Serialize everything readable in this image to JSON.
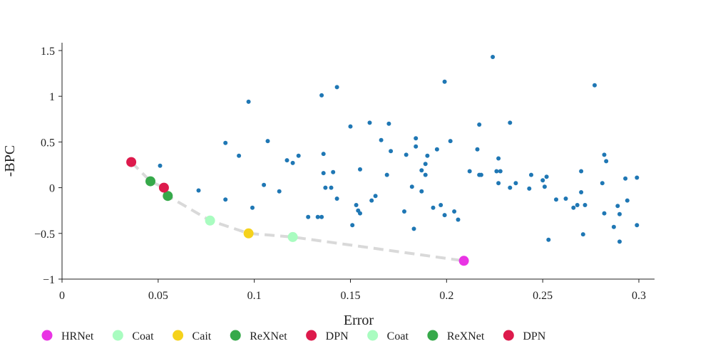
{
  "chart_data": {
    "type": "scatter",
    "xlabel": "Error",
    "ylabel": "-BPC",
    "xlim": [
      0,
      0.3
    ],
    "ylim": [
      -1,
      1.5
    ],
    "x_ticks": [
      {
        "v": 0,
        "label": "0"
      },
      {
        "v": 0.05,
        "label": "0.05"
      },
      {
        "v": 0.1,
        "label": "0.1"
      },
      {
        "v": 0.15,
        "label": "0.15"
      },
      {
        "v": 0.2,
        "label": "0.2"
      },
      {
        "v": 0.25,
        "label": "0.25"
      },
      {
        "v": 0.3,
        "label": "0.3"
      }
    ],
    "y_ticks": [
      {
        "v": 1.5,
        "label": "1.5"
      },
      {
        "v": 1,
        "label": "1"
      },
      {
        "v": 0.5,
        "label": "0.5"
      },
      {
        "v": 0,
        "label": "0"
      },
      {
        "v": -0.5,
        "label": "−0.5"
      },
      {
        "v": -1,
        "label": "−1"
      }
    ],
    "background_points": {
      "color": "#1f77b4",
      "points": [
        [
          0.051,
          0.24
        ],
        [
          0.071,
          -0.03
        ],
        [
          0.085,
          0.49
        ],
        [
          0.085,
          -0.13
        ],
        [
          0.092,
          0.35
        ],
        [
          0.097,
          0.94
        ],
        [
          0.099,
          -0.22
        ],
        [
          0.105,
          0.03
        ],
        [
          0.107,
          0.51
        ],
        [
          0.113,
          -0.04
        ],
        [
          0.117,
          0.3
        ],
        [
          0.12,
          0.27
        ],
        [
          0.123,
          0.35
        ],
        [
          0.128,
          -0.32
        ],
        [
          0.133,
          -0.32
        ],
        [
          0.135,
          -0.32
        ],
        [
          0.135,
          1.01
        ],
        [
          0.136,
          0.37
        ],
        [
          0.136,
          0.16
        ],
        [
          0.137,
          0.0
        ],
        [
          0.14,
          0.0
        ],
        [
          0.141,
          0.17
        ],
        [
          0.143,
          1.1
        ],
        [
          0.143,
          -0.12
        ],
        [
          0.15,
          0.67
        ],
        [
          0.151,
          -0.41
        ],
        [
          0.153,
          -0.19
        ],
        [
          0.154,
          -0.25
        ],
        [
          0.155,
          -0.28
        ],
        [
          0.155,
          0.2
        ],
        [
          0.16,
          0.71
        ],
        [
          0.161,
          -0.14
        ],
        [
          0.163,
          -0.09
        ],
        [
          0.166,
          0.52
        ],
        [
          0.169,
          0.14
        ],
        [
          0.17,
          0.7
        ],
        [
          0.171,
          0.4
        ],
        [
          0.178,
          -0.26
        ],
        [
          0.179,
          0.36
        ],
        [
          0.182,
          0.01
        ],
        [
          0.183,
          -0.45
        ],
        [
          0.184,
          0.45
        ],
        [
          0.184,
          0.54
        ],
        [
          0.187,
          0.19
        ],
        [
          0.187,
          -0.04
        ],
        [
          0.189,
          0.26
        ],
        [
          0.189,
          0.14
        ],
        [
          0.19,
          0.35
        ],
        [
          0.193,
          -0.22
        ],
        [
          0.195,
          0.42
        ],
        [
          0.197,
          -0.19
        ],
        [
          0.199,
          -0.3
        ],
        [
          0.199,
          1.16
        ],
        [
          0.202,
          0.51
        ],
        [
          0.204,
          -0.26
        ],
        [
          0.206,
          -0.35
        ],
        [
          0.212,
          0.18
        ],
        [
          0.216,
          0.42
        ],
        [
          0.217,
          0.14
        ],
        [
          0.217,
          0.69
        ],
        [
          0.218,
          0.14
        ],
        [
          0.224,
          1.43
        ],
        [
          0.226,
          0.18
        ],
        [
          0.227,
          0.05
        ],
        [
          0.227,
          0.32
        ],
        [
          0.228,
          0.18
        ],
        [
          0.233,
          0.71
        ],
        [
          0.233,
          0.0
        ],
        [
          0.236,
          0.05
        ],
        [
          0.243,
          -0.01
        ],
        [
          0.244,
          0.14
        ],
        [
          0.25,
          0.08
        ],
        [
          0.251,
          0.01
        ],
        [
          0.252,
          0.12
        ],
        [
          0.253,
          -0.57
        ],
        [
          0.257,
          -0.13
        ],
        [
          0.262,
          -0.12
        ],
        [
          0.266,
          -0.22
        ],
        [
          0.268,
          -0.19
        ],
        [
          0.27,
          0.18
        ],
        [
          0.27,
          -0.05
        ],
        [
          0.271,
          -0.51
        ],
        [
          0.272,
          -0.19
        ],
        [
          0.277,
          1.12
        ],
        [
          0.281,
          0.05
        ],
        [
          0.282,
          -0.28
        ],
        [
          0.282,
          0.36
        ],
        [
          0.283,
          0.29
        ],
        [
          0.287,
          -0.43
        ],
        [
          0.289,
          -0.2
        ],
        [
          0.29,
          -0.29
        ],
        [
          0.29,
          -0.59
        ],
        [
          0.293,
          0.1
        ],
        [
          0.294,
          -0.14
        ],
        [
          0.299,
          -0.41
        ],
        [
          0.299,
          0.11
        ]
      ]
    },
    "frontier": {
      "color": "#d9d9d9",
      "points": [
        [
          0.036,
          0.28
        ],
        [
          0.046,
          0.07
        ],
        [
          0.053,
          0.0
        ],
        [
          0.055,
          -0.09
        ],
        [
          0.077,
          -0.36
        ],
        [
          0.097,
          -0.5
        ],
        [
          0.12,
          -0.54
        ],
        [
          0.209,
          -0.8
        ]
      ]
    },
    "series": [
      {
        "name": "HRNet",
        "color": "#e934e4",
        "points": [
          [
            0.209,
            -0.8
          ]
        ]
      },
      {
        "name": "Coat",
        "color": "#a9fcc0",
        "points": [
          [
            0.077,
            -0.36
          ]
        ]
      },
      {
        "name": "Cait",
        "color": "#f5d21c",
        "points": [
          [
            0.097,
            -0.5
          ]
        ]
      },
      {
        "name": "ReXNet",
        "color": "#36a94a",
        "points": [
          [
            0.046,
            0.07
          ]
        ]
      },
      {
        "name": "DPN",
        "color": "#dd1a4c",
        "points": [
          [
            0.036,
            0.28
          ]
        ]
      },
      {
        "name": "Coat",
        "color": "#a9fcc0",
        "points": [
          [
            0.12,
            -0.54
          ]
        ]
      },
      {
        "name": "ReXNet",
        "color": "#36a94a",
        "points": [
          [
            0.055,
            -0.09
          ]
        ]
      },
      {
        "name": "DPN",
        "color": "#dd1a4c",
        "points": [
          [
            0.053,
            0.0
          ]
        ]
      }
    ],
    "legend_position": "bottom"
  }
}
